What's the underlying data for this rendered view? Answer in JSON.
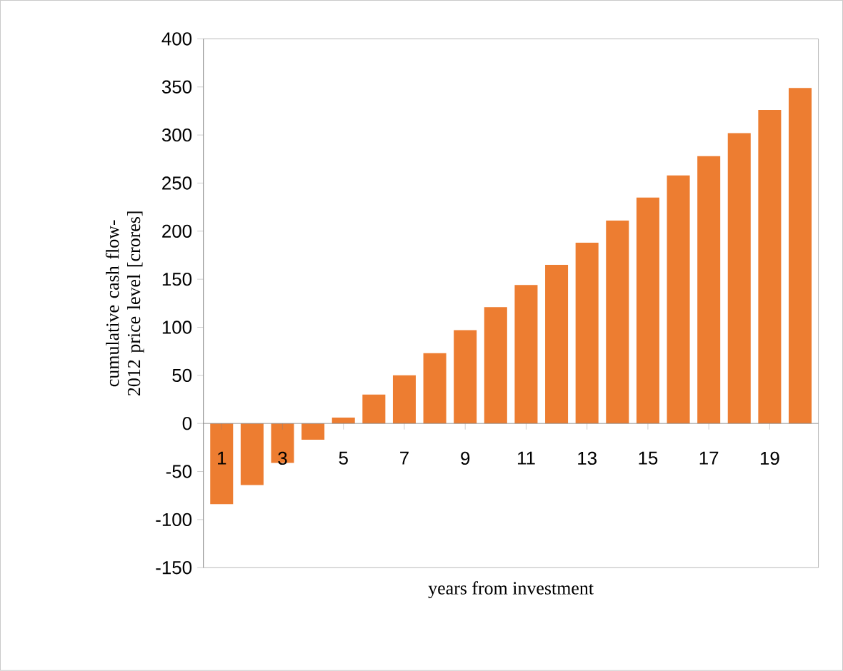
{
  "chart_data": {
    "type": "bar",
    "xlabel": "years from investment",
    "ylabel": "cumulative cash flow-2012 price level [crores]",
    "categories": [
      "1",
      null,
      "3",
      null,
      "5",
      null,
      "7",
      null,
      "9",
      null,
      "11",
      null,
      "13",
      null,
      "15",
      null,
      "17",
      null,
      "19",
      null
    ],
    "values": [
      -84,
      -64,
      -41,
      -17,
      6,
      30,
      50,
      73,
      97,
      121,
      144,
      165,
      188,
      211,
      235,
      258,
      278,
      302,
      326,
      349
    ],
    "color": "#ed7d31",
    "ylim": [
      -150,
      400
    ],
    "yticks": [
      -150,
      -100,
      -50,
      0,
      50,
      100,
      150,
      200,
      250,
      300,
      350,
      400
    ],
    "grid": false
  }
}
